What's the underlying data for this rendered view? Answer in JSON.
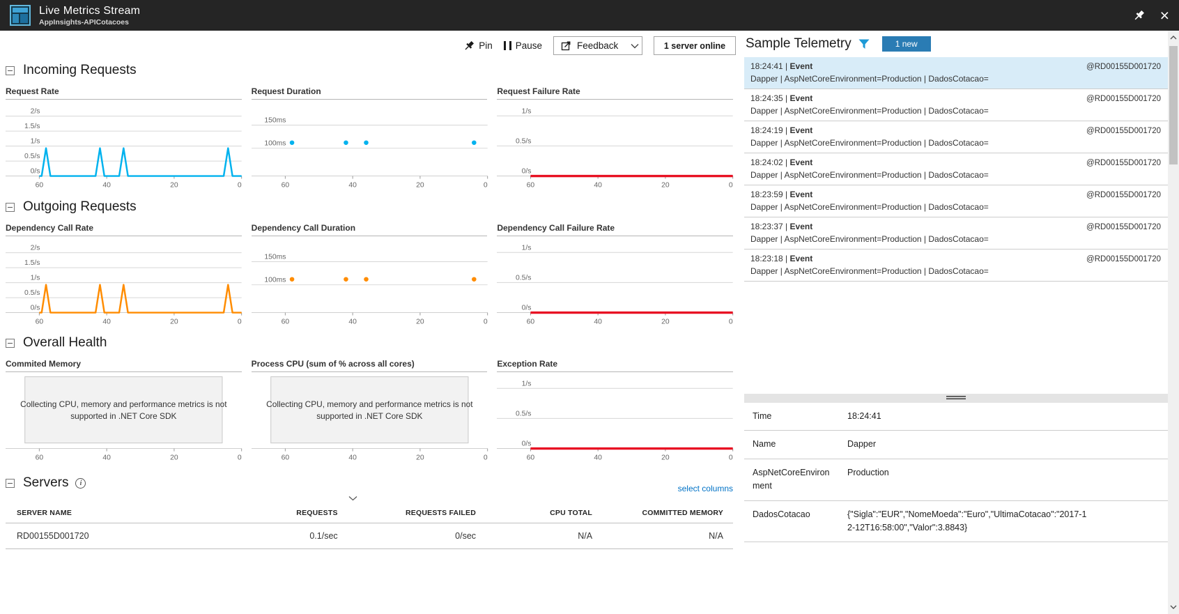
{
  "titlebar": {
    "title": "Live Metrics Stream",
    "subtitle": "AppInsights-APICotacoes"
  },
  "toolbar": {
    "pin_label": "Pin",
    "pause_label": "Pause",
    "feedback_label": "Feedback",
    "server_status_label": "1 server online"
  },
  "sections": {
    "incoming_title": "Incoming Requests",
    "outgoing_title": "Outgoing Requests",
    "health_title": "Overall Health",
    "servers_title": "Servers"
  },
  "servers": {
    "select_columns_label": "select columns",
    "columns": [
      "SERVER NAME",
      "REQUESTS",
      "REQUESTS FAILED",
      "CPU TOTAL",
      "COMMITTED MEMORY"
    ],
    "rows": [
      [
        "RD00155D001720",
        "0.1/sec",
        "0/sec",
        "N/A",
        "N/A"
      ]
    ]
  },
  "telemetry": {
    "title": "Sample Telemetry",
    "new_badge": "1 new",
    "filter_icon": "filter-funnel-icon",
    "items": [
      {
        "time": "18:24:41",
        "type": "Event",
        "detail": "Dapper | AspNetCoreEnvironment=Production | DadosCotacao=",
        "server": "@RD00155D001720",
        "selected": true
      },
      {
        "time": "18:24:35",
        "type": "Event",
        "detail": "Dapper | AspNetCoreEnvironment=Production | DadosCotacao=",
        "server": "@RD00155D001720",
        "selected": false
      },
      {
        "time": "18:24:19",
        "type": "Event",
        "detail": "Dapper | AspNetCoreEnvironment=Production | DadosCotacao=",
        "server": "@RD00155D001720",
        "selected": false
      },
      {
        "time": "18:24:02",
        "type": "Event",
        "detail": "Dapper | AspNetCoreEnvironment=Production | DadosCotacao=",
        "server": "@RD00155D001720",
        "selected": false
      },
      {
        "time": "18:23:59",
        "type": "Event",
        "detail": "Dapper | AspNetCoreEnvironment=Production | DadosCotacao=",
        "server": "@RD00155D001720",
        "selected": false
      },
      {
        "time": "18:23:37",
        "type": "Event",
        "detail": "Dapper | AspNetCoreEnvironment=Production | DadosCotacao=",
        "server": "@RD00155D001720",
        "selected": false
      },
      {
        "time": "18:23:18",
        "type": "Event",
        "detail": "Dapper | AspNetCoreEnvironment=Production | DadosCotacao=",
        "server": "@RD00155D001720",
        "selected": false
      }
    ],
    "detail_rows": [
      {
        "label": "Time",
        "value": "18:24:41"
      },
      {
        "label": "Name",
        "value": "Dapper"
      },
      {
        "label": "AspNetCoreEnvironment",
        "value": "Production"
      },
      {
        "label": "DadosCotacao",
        "value": "{\"Sigla\":\"EUR\",\"NomeMoeda\":\"Euro\",\"UltimaCotacao\":\"2017-12-12T16:58:00\",\"Valor\":3.8843}"
      }
    ]
  },
  "colors": {
    "titlebar_bg": "#252525",
    "incoming_accent": "#00b2ee",
    "outgoing_accent": "#ff8c00",
    "failure_accent": "#e81123",
    "selected_item_bg": "#d8ecf8",
    "new_badge_bg": "#2a7cb4",
    "link_blue": "#0072c6"
  },
  "chart_data": {
    "incoming": [
      {
        "type": "line",
        "title": "Request Rate",
        "color": "#00b2ee",
        "stroke": 2.5,
        "yticks": [
          {
            "v": 2,
            "t": "2/s"
          },
          {
            "v": 1.5,
            "t": "1.5/s"
          },
          {
            "v": 1,
            "t": "1/s"
          },
          {
            "v": 0.5,
            "t": "0.5/s"
          },
          {
            "v": 0,
            "t": "0/s"
          }
        ],
        "ylim": [
          0,
          2.35
        ],
        "xlim": [
          70,
          0
        ],
        "x_ticks": [
          60,
          40,
          20,
          0
        ],
        "xunit": "seconds ago",
        "points": [
          [
            60,
            0
          ],
          [
            59.3,
            0
          ],
          [
            58,
            0.93
          ],
          [
            56.7,
            0
          ],
          [
            43.3,
            0
          ],
          [
            42,
            0.93
          ],
          [
            40.7,
            0
          ],
          [
            36.3,
            0
          ],
          [
            35,
            0.93
          ],
          [
            33.7,
            0
          ],
          [
            5.3,
            0
          ],
          [
            4,
            0.93
          ],
          [
            2.7,
            0
          ],
          [
            0,
            0
          ]
        ]
      },
      {
        "type": "scatter",
        "title": "Request Duration",
        "color": "#00b2ee",
        "yticks": [
          {
            "v": 150,
            "t": "150ms"
          },
          {
            "v": 100,
            "t": "100ms"
          }
        ],
        "ylim": [
          40,
          192
        ],
        "xlim": [
          70,
          0
        ],
        "x_ticks": [
          60,
          40,
          20,
          0
        ],
        "xunit": "seconds ago",
        "points": [
          [
            58,
            112
          ],
          [
            42,
            112
          ],
          [
            36,
            112
          ],
          [
            4,
            112
          ]
        ]
      },
      {
        "type": "line",
        "title": "Request Failure Rate",
        "color": "#e81123",
        "stroke": 3.5,
        "yticks": [
          {
            "v": 1,
            "t": "1/s"
          },
          {
            "v": 0.5,
            "t": "0.5/s"
          },
          {
            "v": 0,
            "t": "0/s"
          }
        ],
        "ylim": [
          0,
          1.17
        ],
        "xlim": [
          70,
          0
        ],
        "x_ticks": [
          60,
          40,
          20,
          0
        ],
        "xunit": "seconds ago",
        "points": [
          [
            60,
            0
          ],
          [
            0,
            0
          ]
        ]
      }
    ],
    "outgoing": [
      {
        "type": "line",
        "title": "Dependency Call Rate",
        "color": "#ff8c00",
        "stroke": 2.5,
        "yticks": [
          {
            "v": 2,
            "t": "2/s"
          },
          {
            "v": 1.5,
            "t": "1.5/s"
          },
          {
            "v": 1,
            "t": "1/s"
          },
          {
            "v": 0.5,
            "t": "0.5/s"
          },
          {
            "v": 0,
            "t": "0/s"
          }
        ],
        "ylim": [
          0,
          2.35
        ],
        "xlim": [
          70,
          0
        ],
        "x_ticks": [
          60,
          40,
          20,
          0
        ],
        "xunit": "seconds ago",
        "points": [
          [
            60,
            0
          ],
          [
            59.3,
            0
          ],
          [
            58,
            0.93
          ],
          [
            56.7,
            0
          ],
          [
            43.3,
            0
          ],
          [
            42,
            0.93
          ],
          [
            40.7,
            0
          ],
          [
            36.3,
            0
          ],
          [
            35,
            0.93
          ],
          [
            33.7,
            0
          ],
          [
            5.3,
            0
          ],
          [
            4,
            0.93
          ],
          [
            2.7,
            0
          ],
          [
            0,
            0
          ]
        ]
      },
      {
        "type": "scatter",
        "title": "Dependency Call Duration",
        "color": "#ff8c00",
        "yticks": [
          {
            "v": 150,
            "t": "150ms"
          },
          {
            "v": 100,
            "t": "100ms"
          }
        ],
        "ylim": [
          40,
          192
        ],
        "xlim": [
          70,
          0
        ],
        "x_ticks": [
          60,
          40,
          20,
          0
        ],
        "xunit": "seconds ago",
        "points": [
          [
            58,
            112
          ],
          [
            42,
            112
          ],
          [
            36,
            112
          ],
          [
            4,
            112
          ]
        ]
      },
      {
        "type": "line",
        "title": "Dependency Call Failure Rate",
        "color": "#e81123",
        "stroke": 3.5,
        "yticks": [
          {
            "v": 1,
            "t": "1/s"
          },
          {
            "v": 0.5,
            "t": "0.5/s"
          },
          {
            "v": 0,
            "t": "0/s"
          }
        ],
        "ylim": [
          0,
          1.17
        ],
        "xlim": [
          70,
          0
        ],
        "x_ticks": [
          60,
          40,
          20,
          0
        ],
        "xunit": "seconds ago",
        "points": [
          [
            60,
            0
          ],
          [
            0,
            0
          ]
        ]
      }
    ],
    "health": [
      {
        "type": "message",
        "title": "Commited Memory",
        "message_lines": [
          "Collecting CPU, memory and performance metrics is not",
          "supported in .NET Core SDK"
        ],
        "xlim": [
          70,
          0
        ],
        "x_ticks": [
          60,
          40,
          20,
          0
        ],
        "xunit": "seconds ago"
      },
      {
        "type": "message",
        "title": "Process CPU (sum of % across all cores)",
        "message_lines": [
          "Collecting CPU, memory and performance metrics is not",
          "supported in .NET Core SDK"
        ],
        "xlim": [
          70,
          0
        ],
        "x_ticks": [
          60,
          40,
          20,
          0
        ],
        "xunit": "seconds ago"
      },
      {
        "type": "line",
        "title": "Exception Rate",
        "color": "#e81123",
        "stroke": 3.5,
        "yticks": [
          {
            "v": 1,
            "t": "1/s"
          },
          {
            "v": 0.5,
            "t": "0.5/s"
          },
          {
            "v": 0,
            "t": "0/s"
          }
        ],
        "ylim": [
          0,
          1.17
        ],
        "xlim": [
          70,
          0
        ],
        "x_ticks": [
          60,
          40,
          20,
          0
        ],
        "xunit": "seconds ago",
        "points": [
          [
            60,
            0
          ],
          [
            0,
            0
          ]
        ]
      }
    ]
  }
}
